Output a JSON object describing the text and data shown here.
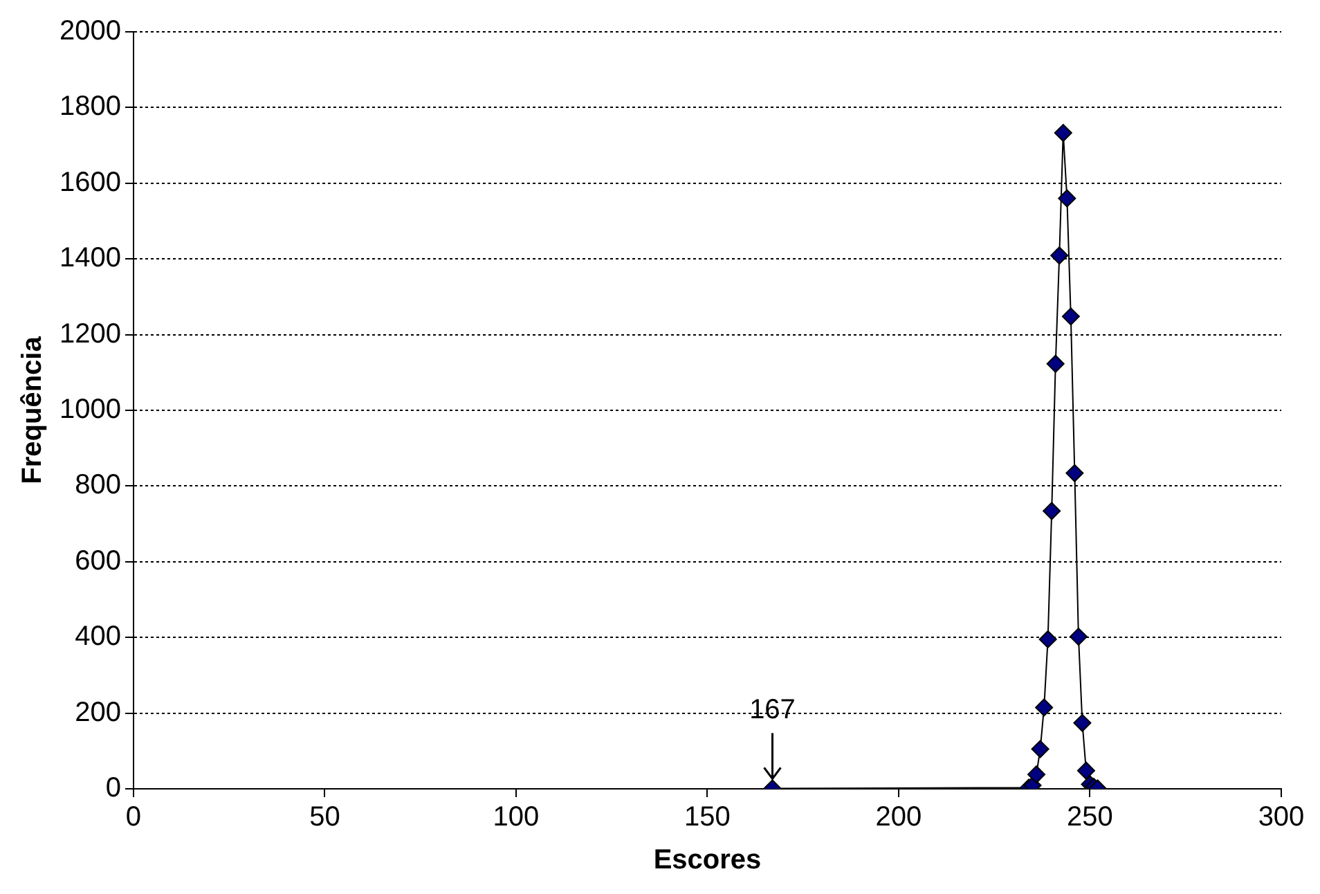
{
  "chart_data": {
    "type": "line",
    "xlabel": "Escores",
    "ylabel": "Frequência",
    "x": [
      167,
      234,
      235,
      236,
      237,
      238,
      239,
      240,
      241,
      242,
      243,
      244,
      245,
      246,
      247,
      248,
      249,
      250,
      251,
      252
    ],
    "series": [
      {
        "color": "#000080",
        "values": [
          1,
          3,
          9,
          38,
          105,
          215,
          395,
          734,
          1123,
          1409,
          1733,
          1560,
          1248,
          834,
          402,
          174,
          48,
          12,
          5,
          1
        ]
      }
    ],
    "xlim": [
      0,
      300
    ],
    "xticks": [
      0,
      50,
      100,
      150,
      200,
      250,
      300
    ],
    "ylim": [
      0,
      2000
    ],
    "yticks": [
      0,
      200,
      400,
      600,
      800,
      1000,
      1200,
      1400,
      1600,
      1800,
      2000
    ],
    "grid": "y",
    "legend": false,
    "marker": "diamond",
    "line_style": "solid",
    "annotations": [
      {
        "text": "167",
        "x": 167,
        "y": 1
      }
    ]
  }
}
